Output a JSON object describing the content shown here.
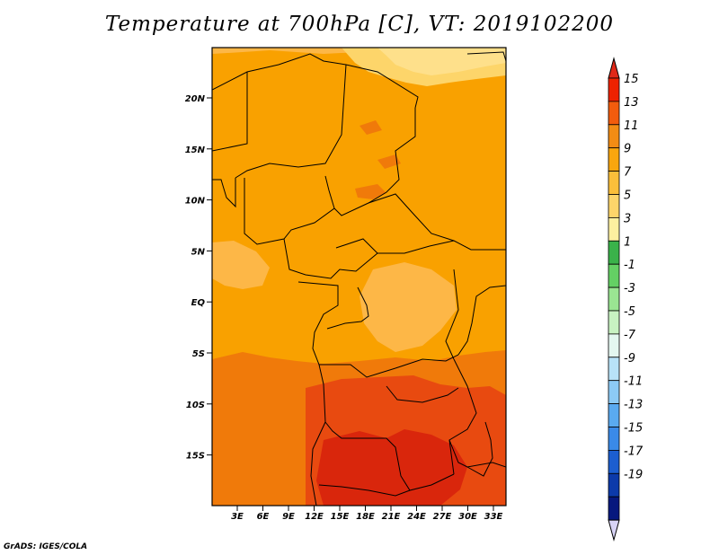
{
  "title": "Temperature at 700hPa [C], VT: 2019102200",
  "credit": "GrADS: IGES/COLA",
  "map": {
    "lat_ticks": [
      "20N",
      "15N",
      "10N",
      "5N",
      "EQ",
      "5S",
      "10S",
      "15S"
    ],
    "lon_ticks": [
      "3E",
      "6E",
      "9E",
      "12E",
      "15E",
      "18E",
      "21E",
      "24E",
      "27E",
      "30E",
      "33E"
    ],
    "field_colors": {
      "warm_yellow": "#fee08b",
      "light_orange": "#fdb747",
      "orange": "#f9a100",
      "dark_orange": "#f07a0a",
      "red_orange": "#e84a10",
      "red": "#d9260c",
      "boundary": "#000000"
    }
  },
  "colorbar": {
    "labels": [
      "15",
      "13",
      "11",
      "9",
      "7",
      "5",
      "3",
      "1",
      "-1",
      "-3",
      "-5",
      "-7",
      "-9",
      "-11",
      "-13",
      "-15",
      "-17",
      "-19"
    ],
    "colors": [
      "#ee2200",
      "#f25c0d",
      "#f28c14",
      "#f9a60e",
      "#fbbf3a",
      "#fdd56a",
      "#fdf0a0",
      "#3ab24a",
      "#64d064",
      "#9ae592",
      "#c8f2c2",
      "#e4f7f0",
      "#b8e2f8",
      "#8ccaf5",
      "#5aaaf0",
      "#3a8ae8",
      "#1c5ed0",
      "#0c3aaa",
      "#06187e"
    ],
    "end_top_color": "#e02818",
    "end_bottom_color": "#d8d4f6"
  }
}
